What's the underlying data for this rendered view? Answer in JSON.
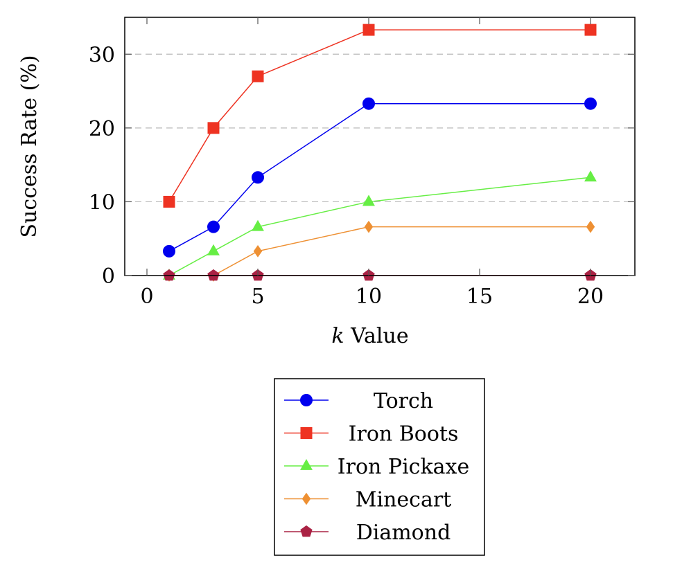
{
  "chart_data": {
    "type": "line",
    "xlabel_var": "k",
    "xlabel_rest": " Value",
    "ylabel": "Success Rate (%)",
    "xlim": [
      -1,
      22
    ],
    "ylim": [
      0,
      35
    ],
    "xticks": [
      0,
      5,
      10,
      15,
      20
    ],
    "yticks": [
      0,
      10,
      20,
      30
    ],
    "grid": "horizontal dashed",
    "legend_position": "below",
    "x": [
      1,
      3,
      5,
      10,
      20
    ],
    "series": [
      {
        "name": "Torch",
        "color": "#0000ee",
        "marker": "circle",
        "values": [
          3.3,
          6.6,
          13.3,
          23.3,
          23.3
        ]
      },
      {
        "name": "Iron Boots",
        "color": "#ee3322",
        "marker": "square",
        "values": [
          10,
          20,
          27,
          33.3,
          33.3
        ]
      },
      {
        "name": "Iron Pickaxe",
        "color": "#66ee44",
        "marker": "triangle",
        "values": [
          0,
          3.3,
          6.6,
          10,
          13.3
        ]
      },
      {
        "name": "Minecart",
        "color": "#ee9033",
        "marker": "diamond",
        "values": [
          0,
          0,
          3.3,
          6.6,
          6.6
        ]
      },
      {
        "name": "Diamond",
        "color": "#aa2244",
        "marker": "pentagon",
        "values": [
          0,
          0,
          0,
          0,
          0
        ]
      }
    ]
  }
}
